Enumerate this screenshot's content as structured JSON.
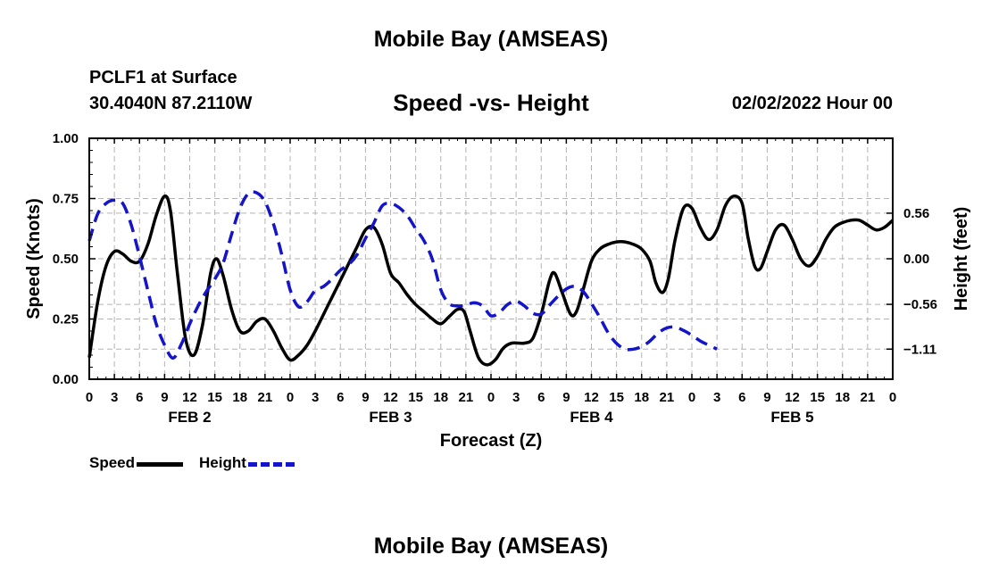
{
  "header": {
    "title": "Mobile Bay (AMSEAS)",
    "station": "PCLF1 at Surface",
    "coords": "30.4040N  87.2110W",
    "subtitle": "Speed -vs- Height",
    "datetime": "02/02/2022 Hour 00"
  },
  "footer": {
    "title": "Mobile Bay (AMSEAS)"
  },
  "legend": {
    "speed": "Speed",
    "height": "Height"
  },
  "colors": {
    "speed": "#000000",
    "height": "#1414c8",
    "grid": "#b4b4b4"
  },
  "chart_data": {
    "type": "line",
    "xlabel": "Forecast (Z)",
    "ylabel_left": "Speed (Knots)",
    "ylabel_right": "Height (feet)",
    "x_range": [
      0,
      96
    ],
    "x_ticks": [
      0,
      3,
      6,
      9,
      12,
      15,
      18,
      21,
      24,
      27,
      30,
      33,
      36,
      39,
      42,
      45,
      48,
      51,
      54,
      57,
      60,
      63,
      66,
      69,
      72,
      75,
      78,
      81,
      84,
      87,
      90,
      93,
      96
    ],
    "x_tick_labels": [
      "0",
      "3",
      "6",
      "9",
      "12",
      "15",
      "18",
      "21",
      "0",
      "3",
      "6",
      "9",
      "12",
      "15",
      "18",
      "21",
      "0",
      "3",
      "6",
      "9",
      "12",
      "15",
      "18",
      "21",
      "0",
      "3",
      "6",
      "9",
      "12",
      "15",
      "18",
      "21",
      "0"
    ],
    "day_labels": [
      {
        "label": "FEB 2",
        "x": 12
      },
      {
        "label": "FEB 3",
        "x": 36
      },
      {
        "label": "FEB 4",
        "x": 60
      },
      {
        "label": "FEB 5",
        "x": 84
      }
    ],
    "y_left": {
      "range": [
        0,
        1
      ],
      "ticks": [
        0,
        0.25,
        0.5,
        0.75,
        1
      ],
      "tick_labels": [
        "0.00",
        "0.25",
        "0.50",
        "0.75",
        "1.00"
      ]
    },
    "y_right": {
      "range": [
        -1.48,
        1.48
      ],
      "ticks": [
        -1.11,
        -0.56,
        0,
        0.56
      ],
      "tick_labels": [
        "−1.11",
        "−0.56",
        "0.00",
        "0.56"
      ]
    },
    "grid": true,
    "series": [
      {
        "name": "Speed",
        "axis": "left",
        "style": "solid",
        "points": [
          [
            0,
            0.09
          ],
          [
            1,
            0.32
          ],
          [
            2,
            0.47
          ],
          [
            3,
            0.53
          ],
          [
            4,
            0.52
          ],
          [
            5,
            0.49
          ],
          [
            6,
            0.49
          ],
          [
            7,
            0.56
          ],
          [
            8,
            0.68
          ],
          [
            9,
            0.76
          ],
          [
            9.7,
            0.7
          ],
          [
            10.5,
            0.45
          ],
          [
            11.5,
            0.17
          ],
          [
            12.5,
            0.1
          ],
          [
            13.5,
            0.22
          ],
          [
            14.5,
            0.44
          ],
          [
            15.2,
            0.5
          ],
          [
            16,
            0.43
          ],
          [
            17,
            0.29
          ],
          [
            18,
            0.2
          ],
          [
            19,
            0.2
          ],
          [
            20,
            0.24
          ],
          [
            21,
            0.25
          ],
          [
            22,
            0.2
          ],
          [
            23,
            0.13
          ],
          [
            24,
            0.08
          ],
          [
            25,
            0.1
          ],
          [
            26,
            0.14
          ],
          [
            27,
            0.2
          ],
          [
            28,
            0.27
          ],
          [
            29,
            0.34
          ],
          [
            30,
            0.41
          ],
          [
            31,
            0.48
          ],
          [
            32,
            0.55
          ],
          [
            33,
            0.62
          ],
          [
            34,
            0.63
          ],
          [
            35,
            0.56
          ],
          [
            36,
            0.44
          ],
          [
            37,
            0.4
          ],
          [
            38,
            0.35
          ],
          [
            39,
            0.31
          ],
          [
            40,
            0.28
          ],
          [
            41,
            0.25
          ],
          [
            42,
            0.23
          ],
          [
            43,
            0.26
          ],
          [
            44,
            0.29
          ],
          [
            44.8,
            0.28
          ],
          [
            45.5,
            0.2
          ],
          [
            46.5,
            0.09
          ],
          [
            47.5,
            0.06
          ],
          [
            48.5,
            0.08
          ],
          [
            49.5,
            0.13
          ],
          [
            50.5,
            0.15
          ],
          [
            52,
            0.15
          ],
          [
            53,
            0.17
          ],
          [
            54,
            0.27
          ],
          [
            55,
            0.41
          ],
          [
            55.6,
            0.44
          ],
          [
            56.5,
            0.36
          ],
          [
            57.5,
            0.27
          ],
          [
            58.2,
            0.28
          ],
          [
            59,
            0.37
          ],
          [
            60,
            0.49
          ],
          [
            61,
            0.54
          ],
          [
            62,
            0.56
          ],
          [
            63,
            0.57
          ],
          [
            64,
            0.57
          ],
          [
            65,
            0.56
          ],
          [
            66,
            0.54
          ],
          [
            67,
            0.49
          ],
          [
            67.7,
            0.4
          ],
          [
            68.5,
            0.36
          ],
          [
            69.2,
            0.42
          ],
          [
            70,
            0.58
          ],
          [
            71,
            0.71
          ],
          [
            72,
            0.71
          ],
          [
            73,
            0.63
          ],
          [
            74,
            0.58
          ],
          [
            75,
            0.62
          ],
          [
            76,
            0.72
          ],
          [
            77,
            0.76
          ],
          [
            78,
            0.73
          ],
          [
            78.7,
            0.59
          ],
          [
            79.5,
            0.47
          ],
          [
            80.2,
            0.46
          ],
          [
            81,
            0.53
          ],
          [
            82,
            0.62
          ],
          [
            83,
            0.64
          ],
          [
            84,
            0.58
          ],
          [
            85,
            0.5
          ],
          [
            86,
            0.47
          ],
          [
            87,
            0.51
          ],
          [
            88,
            0.58
          ],
          [
            89,
            0.63
          ],
          [
            90,
            0.65
          ],
          [
            91,
            0.66
          ],
          [
            92,
            0.66
          ],
          [
            93,
            0.64
          ],
          [
            94,
            0.62
          ],
          [
            95,
            0.63
          ],
          [
            96,
            0.66
          ]
        ]
      },
      {
        "name": "Height",
        "axis": "right",
        "style": "dashed",
        "points": [
          [
            0,
            0.22
          ],
          [
            1,
            0.55
          ],
          [
            2,
            0.68
          ],
          [
            3,
            0.72
          ],
          [
            4,
            0.68
          ],
          [
            5,
            0.42
          ],
          [
            6,
            0.03
          ],
          [
            7,
            -0.39
          ],
          [
            8,
            -0.8
          ],
          [
            9,
            -1.06
          ],
          [
            10,
            -1.22
          ],
          [
            11,
            -1.05
          ],
          [
            12,
            -0.8
          ],
          [
            13,
            -0.58
          ],
          [
            14,
            -0.4
          ],
          [
            15,
            -0.25
          ],
          [
            16,
            -0.05
          ],
          [
            17,
            0.3
          ],
          [
            18,
            0.62
          ],
          [
            19,
            0.8
          ],
          [
            20,
            0.81
          ],
          [
            21,
            0.7
          ],
          [
            22,
            0.43
          ],
          [
            23,
            0.05
          ],
          [
            24,
            -0.38
          ],
          [
            25,
            -0.59
          ],
          [
            26,
            -0.53
          ],
          [
            27,
            -0.39
          ],
          [
            28,
            -0.34
          ],
          [
            29,
            -0.25
          ],
          [
            30,
            -0.14
          ],
          [
            31,
            -0.07
          ],
          [
            32,
            0.05
          ],
          [
            33,
            0.25
          ],
          [
            34,
            0.44
          ],
          [
            35,
            0.65
          ],
          [
            36,
            0.68
          ],
          [
            37,
            0.63
          ],
          [
            38,
            0.53
          ],
          [
            39,
            0.37
          ],
          [
            40,
            0.22
          ],
          [
            41,
            -0.01
          ],
          [
            42,
            -0.38
          ],
          [
            43,
            -0.55
          ],
          [
            44,
            -0.58
          ],
          [
            45,
            -0.57
          ],
          [
            46,
            -0.54
          ],
          [
            47,
            -0.58
          ],
          [
            48,
            -0.7
          ],
          [
            49,
            -0.66
          ],
          [
            50,
            -0.56
          ],
          [
            51,
            -0.52
          ],
          [
            52,
            -0.58
          ],
          [
            53,
            -0.67
          ],
          [
            54,
            -0.68
          ],
          [
            55,
            -0.57
          ],
          [
            56,
            -0.46
          ],
          [
            57,
            -0.37
          ],
          [
            58,
            -0.34
          ],
          [
            59,
            -0.4
          ],
          [
            60,
            -0.55
          ],
          [
            61,
            -0.72
          ],
          [
            62,
            -0.91
          ],
          [
            63,
            -1.04
          ],
          [
            64,
            -1.11
          ],
          [
            65,
            -1.11
          ],
          [
            66,
            -1.08
          ],
          [
            67,
            -1.01
          ],
          [
            68,
            -0.91
          ],
          [
            69,
            -0.85
          ],
          [
            70,
            -0.84
          ],
          [
            71,
            -0.88
          ],
          [
            72,
            -0.94
          ],
          [
            73,
            -1.01
          ],
          [
            74,
            -1.06
          ],
          [
            75,
            -1.11
          ]
        ]
      }
    ]
  }
}
